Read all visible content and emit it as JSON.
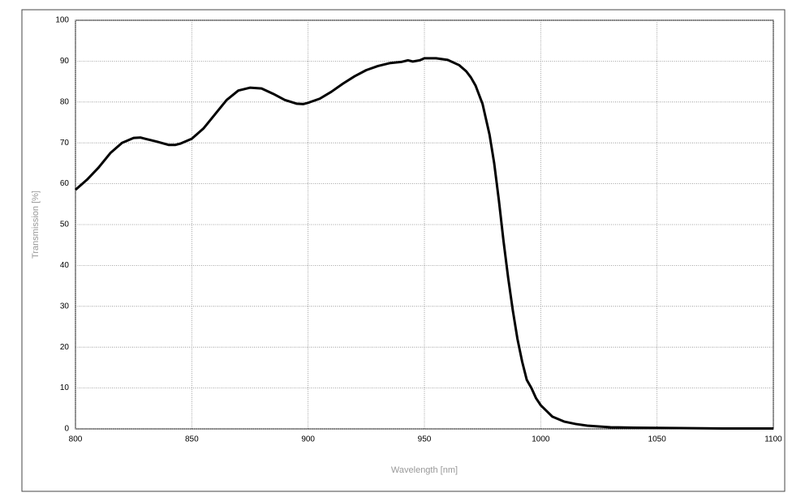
{
  "chart_data": {
    "type": "line",
    "x_label": "Wavelength [nm]",
    "y_label": "Transmission [%]",
    "x": [
      800,
      805,
      810,
      815,
      820,
      825,
      828,
      830,
      835,
      840,
      843,
      845,
      850,
      855,
      860,
      865,
      870,
      875,
      880,
      885,
      890,
      895,
      898,
      900,
      905,
      910,
      915,
      920,
      925,
      930,
      935,
      940,
      943,
      945,
      948,
      950,
      955,
      960,
      965,
      968,
      970,
      972,
      975,
      978,
      980,
      982,
      984,
      986,
      988,
      990,
      992,
      994,
      996,
      998,
      1000,
      1005,
      1010,
      1015,
      1020,
      1030,
      1040,
      1060,
      1080,
      1100
    ],
    "series": [
      {
        "name": "Transmission",
        "color": "#000000",
        "values": [
          58.5,
          61,
          64,
          67.5,
          70,
          71.2,
          71.3,
          71,
          70.3,
          69.5,
          69.5,
          69.8,
          71,
          73.5,
          77,
          80.5,
          82.8,
          83.5,
          83.3,
          82,
          80.5,
          79.6,
          79.5,
          79.8,
          80.8,
          82.5,
          84.5,
          86.3,
          87.8,
          88.8,
          89.5,
          89.8,
          90.2,
          89.9,
          90.2,
          90.7,
          90.7,
          90.3,
          89,
          87.5,
          86,
          84,
          79.5,
          72,
          65,
          56,
          46,
          37,
          29,
          22,
          16.5,
          12,
          10,
          7.5,
          5.8,
          3,
          1.8,
          1.2,
          0.8,
          0.4,
          0.3,
          0.2,
          0.1,
          0.1
        ]
      }
    ],
    "xlim": [
      800,
      1100
    ],
    "xticks": [
      800,
      850,
      900,
      950,
      1000,
      1050,
      1100
    ],
    "ylim": [
      0,
      100
    ],
    "yticks": [
      0,
      10,
      20,
      30,
      40,
      50,
      60,
      70,
      80,
      90,
      100
    ],
    "grid": true
  }
}
